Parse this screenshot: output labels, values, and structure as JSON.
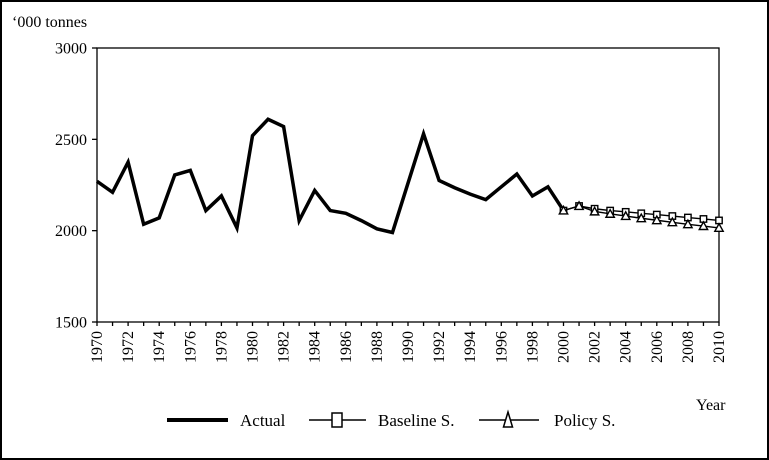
{
  "frame": {
    "background": "#ffffff",
    "border_color": "#000000"
  },
  "chart_data": {
    "type": "line",
    "title": "",
    "ylabel": "‘000 tonnes",
    "xlabel": "Year",
    "line_color": "#000000",
    "plot_background": "#ffffff",
    "grid": false,
    "legend_position": "bottom-center",
    "ylim": [
      1500,
      3000
    ],
    "y_ticks": [
      3000,
      2500,
      2000,
      1500
    ],
    "xlim": [
      1970,
      2010
    ],
    "x_tick_step": 1,
    "x_labels": [
      1970,
      1972,
      1974,
      1976,
      1978,
      1980,
      1982,
      1984,
      1986,
      1988,
      1990,
      1992,
      1994,
      1996,
      1998,
      2000,
      2002,
      2004,
      2006,
      2008,
      2010
    ],
    "series": [
      {
        "name": "Actual",
        "style": "thick",
        "marker": "none",
        "x": [
          1970,
          1971,
          1972,
          1973,
          1974,
          1975,
          1976,
          1977,
          1978,
          1979,
          1980,
          1981,
          1982,
          1983,
          1984,
          1985,
          1986,
          1987,
          1988,
          1989,
          1990,
          1991,
          1992,
          1993,
          1994,
          1995,
          1996,
          1997,
          1998,
          1999,
          2000
        ],
        "values": [
          2270,
          2210,
          2375,
          2035,
          2070,
          2305,
          2330,
          2110,
          2190,
          2015,
          2520,
          2610,
          2570,
          2055,
          2220,
          2110,
          2095,
          2055,
          2010,
          1990,
          2260,
          2530,
          2275,
          2235,
          2200,
          2170,
          2240,
          2310,
          2190,
          2240,
          2110
        ]
      },
      {
        "name": "Baseline S.",
        "style": "thin",
        "marker": "square",
        "x": [
          2000,
          2001,
          2002,
          2003,
          2004,
          2005,
          2006,
          2007,
          2008,
          2009,
          2010
        ],
        "values": [
          2110,
          2135,
          2120,
          2110,
          2103,
          2095,
          2088,
          2080,
          2072,
          2064,
          2056
        ]
      },
      {
        "name": "Policy S.",
        "style": "thin",
        "marker": "triangle",
        "x": [
          2000,
          2001,
          2002,
          2003,
          2004,
          2005,
          2006,
          2007,
          2008,
          2009,
          2010
        ],
        "values": [
          2110,
          2135,
          2105,
          2092,
          2080,
          2068,
          2057,
          2046,
          2035,
          2025,
          2015
        ]
      }
    ]
  }
}
